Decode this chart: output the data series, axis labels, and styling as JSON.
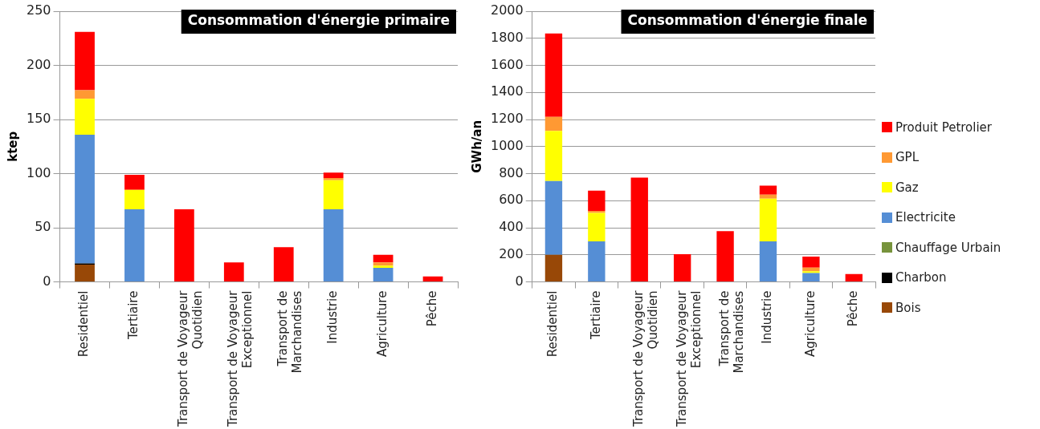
{
  "chart_data": [
    {
      "type": "bar",
      "title": "Consommation d'énergie primaire",
      "ylabel": "ktep",
      "stacked": true,
      "grid": "y",
      "legend": false,
      "categories": [
        "Residentiel",
        "Tertiaire",
        "Transport de Voyageur Quotidien",
        "Transport de Voyageur Exceptionnel",
        "Transport de Marchandises",
        "Industrie",
        "Agriculture",
        "Pêche"
      ],
      "ylim": [
        0,
        250
      ],
      "yticks": [
        0,
        50,
        100,
        150,
        200,
        250
      ],
      "series": [
        {
          "color": "#984807",
          "values": [
            16,
            null,
            null,
            null,
            null,
            null,
            null,
            null
          ]
        },
        {
          "color": "#000000",
          "values": [
            1,
            null,
            null,
            null,
            null,
            null,
            null,
            null
          ]
        },
        {
          "color": "#77933c",
          "values": [
            null,
            null,
            null,
            null,
            null,
            null,
            null,
            null
          ]
        },
        {
          "color": "#558ed5",
          "values": [
            119,
            67,
            null,
            null,
            null,
            67,
            13,
            null
          ]
        },
        {
          "color": "#ffff00",
          "values": [
            33,
            18,
            null,
            null,
            null,
            27,
            2,
            null
          ]
        },
        {
          "color": "#ff9933",
          "values": [
            8,
            null,
            null,
            null,
            null,
            2,
            3,
            null
          ]
        },
        {
          "color": "#ff0000",
          "values": [
            54,
            14,
            67,
            18,
            32,
            5,
            7,
            5
          ]
        }
      ]
    },
    {
      "type": "bar",
      "title": "Consommation d'énergie finale",
      "ylabel": "GWh/an",
      "stacked": true,
      "grid": "y",
      "legend": "right",
      "categories": [
        "Residentiel",
        "Tertiaire",
        "Transport de Voyageur Quotidien",
        "Transport de Voyageur Exceptionnel",
        "Transport de Marchandises",
        "Industrie",
        "Agriculture",
        "Pêche"
      ],
      "ylim": [
        0,
        2000
      ],
      "yticks": [
        0,
        200,
        400,
        600,
        800,
        1000,
        1200,
        1400,
        1600,
        1800,
        2000
      ],
      "series": [
        {
          "name": "Bois",
          "color": "#984807",
          "values": [
            200,
            null,
            null,
            null,
            null,
            null,
            null,
            null
          ]
        },
        {
          "name": "Charbon",
          "color": "#000000",
          "values": [
            null,
            null,
            null,
            null,
            null,
            null,
            null,
            null
          ]
        },
        {
          "name": "Chauffage Urbain",
          "color": "#77933c",
          "values": [
            null,
            null,
            null,
            null,
            null,
            null,
            null,
            null
          ]
        },
        {
          "name": "Electricite",
          "color": "#558ed5",
          "values": [
            545,
            300,
            null,
            null,
            null,
            300,
            65,
            null
          ]
        },
        {
          "name": "Gaz",
          "color": "#ffff00",
          "values": [
            370,
            210,
            null,
            null,
            null,
            315,
            14,
            null
          ]
        },
        {
          "name": "GPL",
          "color": "#ff9933",
          "values": [
            105,
            15,
            null,
            null,
            null,
            30,
            27,
            null
          ]
        },
        {
          "name": "Produit Petrolier",
          "color": "#ff0000",
          "values": [
            615,
            150,
            770,
            205,
            375,
            67,
            81,
            58
          ]
        }
      ]
    }
  ]
}
